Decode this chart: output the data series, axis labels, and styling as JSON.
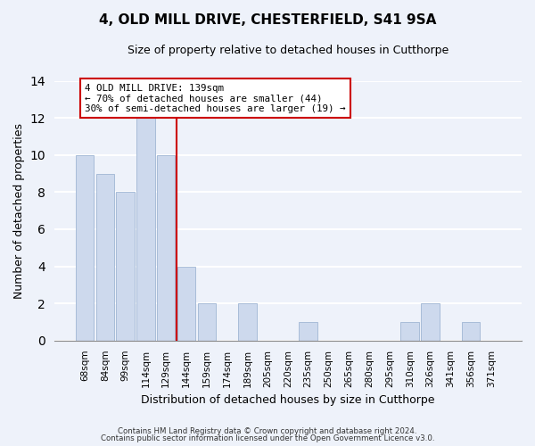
{
  "title": "4, OLD MILL DRIVE, CHESTERFIELD, S41 9SA",
  "subtitle": "Size of property relative to detached houses in Cutthorpe",
  "xlabel": "Distribution of detached houses by size in Cutthorpe",
  "ylabel": "Number of detached properties",
  "bar_labels": [
    "68sqm",
    "84sqm",
    "99sqm",
    "114sqm",
    "129sqm",
    "144sqm",
    "159sqm",
    "174sqm",
    "189sqm",
    "205sqm",
    "220sqm",
    "235sqm",
    "250sqm",
    "265sqm",
    "280sqm",
    "295sqm",
    "310sqm",
    "326sqm",
    "341sqm",
    "356sqm",
    "371sqm"
  ],
  "bar_values": [
    10,
    9,
    8,
    12,
    10,
    4,
    2,
    0,
    2,
    0,
    0,
    1,
    0,
    0,
    0,
    0,
    1,
    2,
    0,
    1,
    0
  ],
  "bar_color": "#cdd9ed",
  "bar_edge_color": "#a8bcd8",
  "vline_color": "#cc0000",
  "ylim": [
    0,
    14
  ],
  "yticks": [
    0,
    2,
    4,
    6,
    8,
    10,
    12,
    14
  ],
  "annotation_line1": "4 OLD MILL DRIVE: 139sqm",
  "annotation_line2": "← 70% of detached houses are smaller (44)",
  "annotation_line3": "30% of semi-detached houses are larger (19) →",
  "annotation_box_color": "white",
  "annotation_box_edge": "#cc0000",
  "footer1": "Contains HM Land Registry data © Crown copyright and database right 2024.",
  "footer2": "Contains public sector information licensed under the Open Government Licence v3.0.",
  "background_color": "#eef2fa",
  "grid_color": "white",
  "title_fontsize": 11,
  "subtitle_fontsize": 9,
  "ylabel_fontsize": 9,
  "xlabel_fontsize": 9,
  "tick_fontsize": 7.5
}
